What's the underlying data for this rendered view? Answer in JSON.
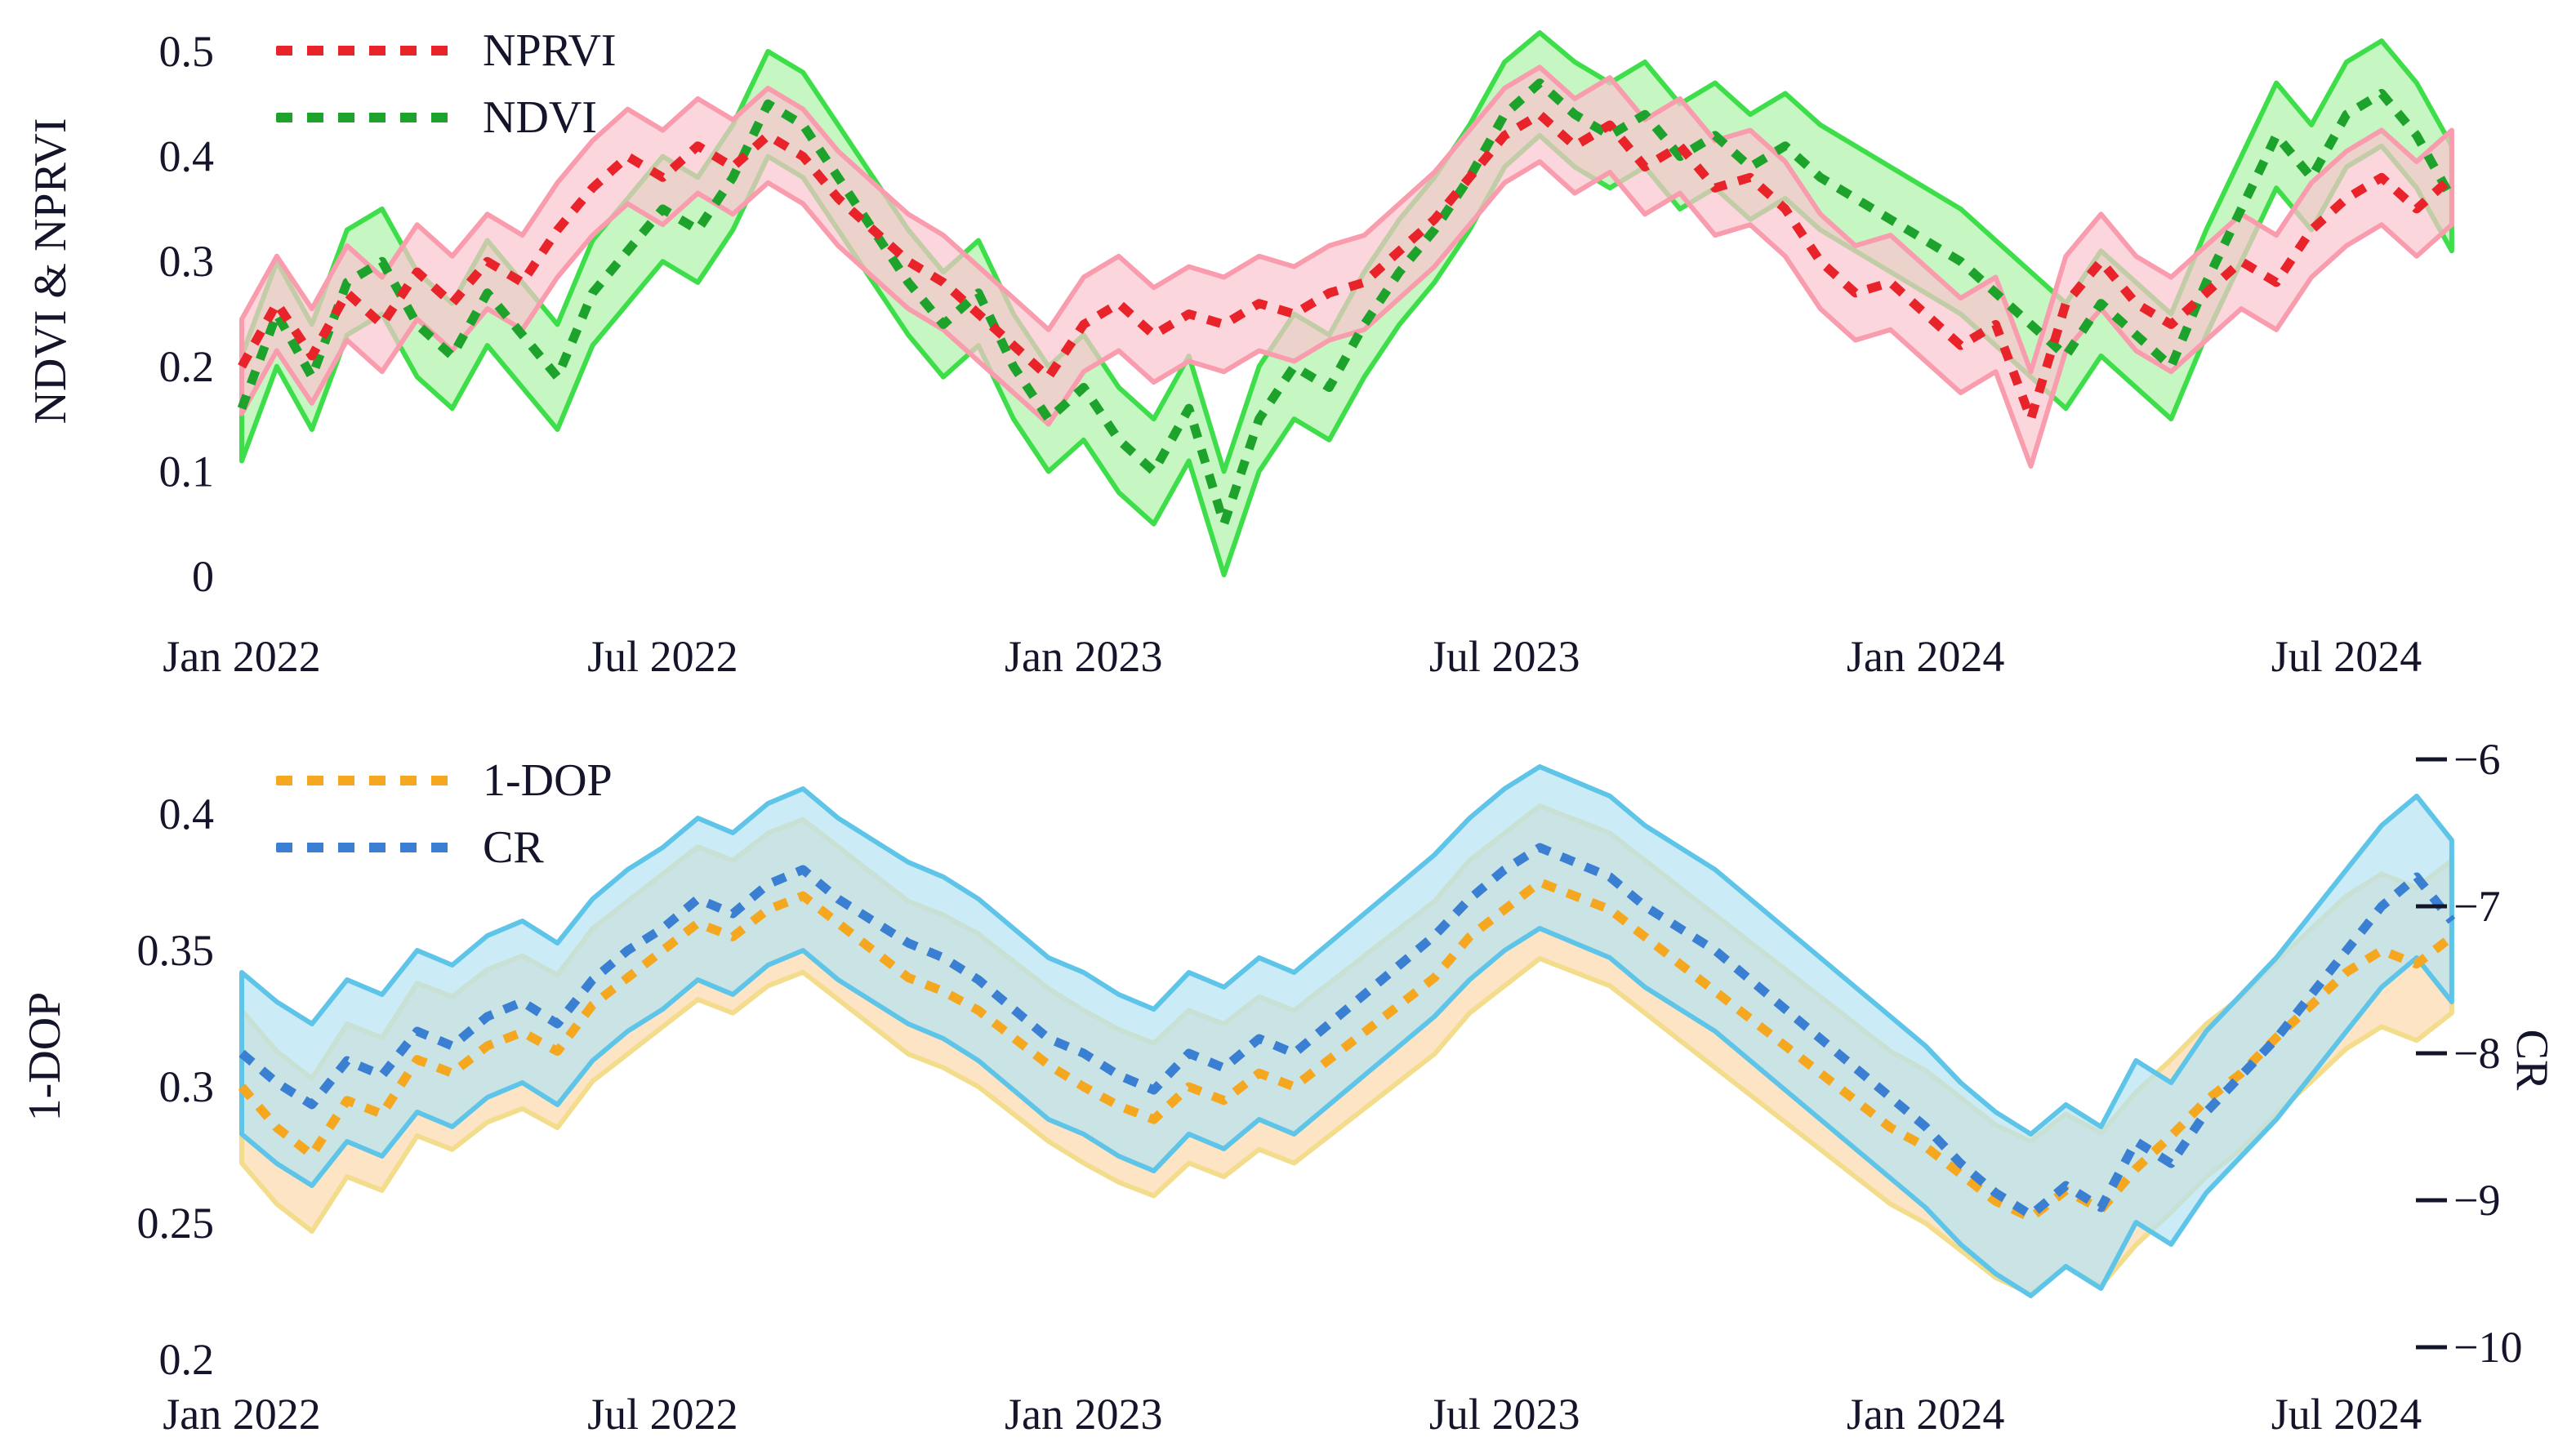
{
  "figure": {
    "background": "#ffffff",
    "text_color": "#14142b"
  },
  "chart_data": [
    {
      "type": "line",
      "panel": "top",
      "y_axis_title": "NDVI & NPRVI",
      "y_ticks": {
        "values": [
          0,
          0.1,
          0.2,
          0.3,
          0.4,
          0.5
        ],
        "labels": [
          "0",
          "0.1",
          "0.2",
          "0.3",
          "0.4",
          "0.5"
        ]
      },
      "y_range": [
        0,
        0.5
      ],
      "x_ticks": {
        "months": [
          0,
          6,
          12,
          18,
          24,
          30
        ],
        "labels": [
          "Jan 2022",
          "Jul 2022",
          "Jan 2023",
          "Jul 2023",
          "Jan 2024",
          "Jul 2024"
        ]
      },
      "x_step_months": 0.5,
      "grid": false,
      "legend_position": "top-left",
      "legend": [
        {
          "label": "NPRVI",
          "color": "#e8232a"
        },
        {
          "label": "NDVI",
          "color": "#1da32b"
        }
      ],
      "series": [
        {
          "name": "NDVI",
          "axis": "left",
          "color": "#1da32b",
          "band_fill": "#aef2a8",
          "band_edge": "#3ede4b",
          "band_half_width": 0.05,
          "values": [
            0.16,
            0.25,
            0.19,
            0.28,
            0.3,
            0.24,
            0.21,
            0.27,
            0.23,
            0.19,
            0.27,
            0.31,
            0.35,
            0.33,
            0.38,
            0.45,
            0.43,
            0.38,
            0.33,
            0.28,
            0.24,
            0.27,
            0.2,
            0.15,
            0.18,
            0.13,
            0.1,
            0.16,
            0.05,
            0.15,
            0.2,
            0.18,
            0.24,
            0.29,
            0.33,
            0.38,
            0.44,
            0.47,
            0.44,
            0.42,
            0.44,
            0.4,
            0.42,
            0.39,
            0.41,
            0.38,
            0.36,
            0.34,
            0.32,
            0.3,
            0.27,
            0.24,
            0.21,
            0.26,
            0.23,
            0.2,
            0.28,
            0.35,
            0.42,
            0.38,
            0.44,
            0.46,
            0.42,
            0.36
          ]
        },
        {
          "name": "NPRVI",
          "axis": "left",
          "color": "#e8232a",
          "band_fill": "#fbc4cf",
          "band_edge": "#f89cae",
          "band_half_width": 0.045,
          "values": [
            0.2,
            0.26,
            0.21,
            0.27,
            0.24,
            0.29,
            0.26,
            0.3,
            0.28,
            0.33,
            0.37,
            0.4,
            0.38,
            0.41,
            0.39,
            0.42,
            0.4,
            0.36,
            0.33,
            0.3,
            0.28,
            0.25,
            0.22,
            0.19,
            0.24,
            0.26,
            0.23,
            0.25,
            0.24,
            0.26,
            0.25,
            0.27,
            0.28,
            0.31,
            0.34,
            0.38,
            0.42,
            0.44,
            0.41,
            0.43,
            0.39,
            0.41,
            0.37,
            0.38,
            0.35,
            0.3,
            0.27,
            0.28,
            0.25,
            0.22,
            0.24,
            0.15,
            0.26,
            0.3,
            0.26,
            0.24,
            0.27,
            0.3,
            0.28,
            0.33,
            0.36,
            0.38,
            0.35,
            0.38
          ]
        }
      ]
    },
    {
      "type": "line",
      "panel": "bottom",
      "y_axis_title_left": "1-DOP",
      "y_axis_title_right": "CR",
      "y_ticks_left": {
        "values": [
          0.4,
          0.35,
          0.3,
          0.25,
          0.2
        ],
        "labels": [
          "0.4",
          "0.35",
          "0.3",
          "0.25",
          "0.2"
        ]
      },
      "y_range_left": [
        0.2,
        0.4
      ],
      "y_ticks_right": {
        "values": [
          -6,
          -7,
          -8,
          -9,
          -10
        ],
        "labels": [
          "−6",
          "−7",
          "−8",
          "−9",
          "−10"
        ]
      },
      "y_range_right": [
        -10,
        -6
      ],
      "x_ticks": {
        "months": [
          0,
          6,
          12,
          18,
          24,
          30
        ],
        "labels": [
          "Jan 2022",
          "Jul 2022",
          "Jan 2023",
          "Jul 2023",
          "Jan 2024",
          "Jul 2024"
        ]
      },
      "x_step_months": 0.5,
      "grid": false,
      "legend_position": "top-left",
      "legend": [
        {
          "label": "1-DOP",
          "color": "#f5a71f"
        },
        {
          "label": "CR",
          "color": "#3a7fd2"
        }
      ],
      "series": [
        {
          "name": "1-DOP",
          "axis": "left",
          "color": "#f5a71f",
          "band_fill": "#fbd9ad",
          "band_edge": "#f3dd8c",
          "band_half_width": 0.028,
          "values": [
            0.3,
            0.285,
            0.275,
            0.295,
            0.29,
            0.31,
            0.305,
            0.315,
            0.32,
            0.313,
            0.33,
            0.34,
            0.35,
            0.36,
            0.355,
            0.365,
            0.37,
            0.36,
            0.35,
            0.34,
            0.335,
            0.328,
            0.318,
            0.308,
            0.3,
            0.293,
            0.288,
            0.3,
            0.295,
            0.305,
            0.3,
            0.31,
            0.32,
            0.33,
            0.34,
            0.355,
            0.365,
            0.375,
            0.37,
            0.365,
            0.355,
            0.345,
            0.335,
            0.325,
            0.315,
            0.305,
            0.295,
            0.285,
            0.278,
            0.268,
            0.258,
            0.252,
            0.262,
            0.255,
            0.27,
            0.282,
            0.295,
            0.305,
            0.318,
            0.33,
            0.342,
            0.35,
            0.345,
            0.355
          ]
        },
        {
          "name": "CR",
          "axis": "right",
          "color": "#3a7fd2",
          "band_fill": "#b5e3f2",
          "band_edge": "#5ec4e8",
          "band_half_width": 0.55,
          "values": [
            -8.0,
            -8.2,
            -8.35,
            -8.05,
            -8.15,
            -7.85,
            -7.95,
            -7.75,
            -7.65,
            -7.8,
            -7.5,
            -7.3,
            -7.15,
            -6.95,
            -7.05,
            -6.85,
            -6.75,
            -6.95,
            -7.1,
            -7.25,
            -7.35,
            -7.5,
            -7.7,
            -7.9,
            -8.0,
            -8.15,
            -8.25,
            -8.0,
            -8.1,
            -7.9,
            -8.0,
            -7.8,
            -7.6,
            -7.4,
            -7.2,
            -6.95,
            -6.75,
            -6.6,
            -6.7,
            -6.8,
            -7.0,
            -7.15,
            -7.3,
            -7.5,
            -7.7,
            -7.9,
            -8.1,
            -8.3,
            -8.5,
            -8.75,
            -8.95,
            -9.1,
            -8.9,
            -9.05,
            -8.6,
            -8.75,
            -8.4,
            -8.15,
            -7.9,
            -7.6,
            -7.3,
            -7.0,
            -6.8,
            -7.1
          ]
        }
      ]
    }
  ]
}
